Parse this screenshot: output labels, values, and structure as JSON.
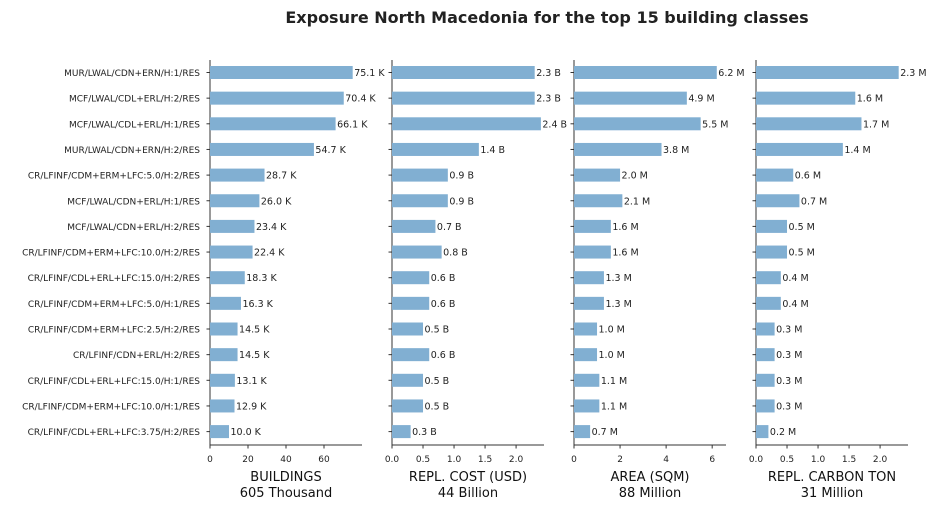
{
  "chart_data": {
    "type": "bar",
    "orientation": "horizontal",
    "title": "Exposure North Macedonia for the top 15 building classes",
    "categories": [
      "MUR/LWAL/CDN+ERN/H:1/RES",
      "MCF/LWAL/CDL+ERL/H:2/RES",
      "MCF/LWAL/CDL+ERL/H:1/RES",
      "MUR/LWAL/CDN+ERN/H:2/RES",
      "CR/LFINF/CDM+ERM+LFC:5.0/H:2/RES",
      "MCF/LWAL/CDN+ERL/H:1/RES",
      "MCF/LWAL/CDN+ERL/H:2/RES",
      "CR/LFINF/CDM+ERM+LFC:10.0/H:2/RES",
      "CR/LFINF/CDL+ERL+LFC:15.0/H:2/RES",
      "CR/LFINF/CDM+ERM+LFC:5.0/H:1/RES",
      "CR/LFINF/CDM+ERM+LFC:2.5/H:2/RES",
      "CR/LFINF/CDN+ERL/H:2/RES",
      "CR/LFINF/CDL+ERL+LFC:15.0/H:1/RES",
      "CR/LFINF/CDM+ERM+LFC:10.0/H:1/RES",
      "CR/LFINF/CDL+ERL+LFC:3.75/H:2/RES"
    ],
    "panels": [
      {
        "name": "BUILDINGS",
        "total": "605 Thousand",
        "xlim": [
          0,
          80
        ],
        "ticks": [
          0,
          20,
          40,
          60
        ],
        "tick_labels": [
          "0",
          "20",
          "40",
          "60"
        ],
        "values": [
          75.1,
          70.4,
          66.1,
          54.7,
          28.7,
          26.0,
          23.4,
          22.4,
          18.3,
          16.3,
          14.5,
          14.5,
          13.1,
          12.9,
          10.0
        ],
        "value_labels": [
          "75.1 K",
          "70.4 K",
          "66.1 K",
          "54.7 K",
          "28.7 K",
          "26.0 K",
          "23.4 K",
          "22.4 K",
          "18.3 K",
          "16.3 K",
          "14.5 K",
          "14.5 K",
          "13.1 K",
          "12.9 K",
          "10.0 K"
        ]
      },
      {
        "name": "REPL. COST (USD)",
        "total": "44 Billion",
        "xlim": [
          0,
          2.45
        ],
        "ticks": [
          0,
          0.5,
          1.0,
          1.5,
          2.0
        ],
        "tick_labels": [
          "0.0",
          "0.5",
          "1.0",
          "1.5",
          "2.0"
        ],
        "values": [
          2.3,
          2.3,
          2.4,
          1.4,
          0.9,
          0.9,
          0.7,
          0.8,
          0.6,
          0.6,
          0.5,
          0.6,
          0.5,
          0.5,
          0.3
        ],
        "value_labels": [
          "2.3 B",
          "2.3 B",
          "2.4 B",
          "1.4 B",
          "0.9 B",
          "0.9 B",
          "0.7 B",
          "0.8 B",
          "0.6 B",
          "0.6 B",
          "0.5 B",
          "0.6 B",
          "0.5 B",
          "0.5 B",
          "0.3 B"
        ]
      },
      {
        "name": "AREA (SQM)",
        "total": "88 Million",
        "xlim": [
          0,
          6.6
        ],
        "ticks": [
          0,
          2,
          4,
          6
        ],
        "tick_labels": [
          "0",
          "2",
          "4",
          "6"
        ],
        "values": [
          6.2,
          4.9,
          5.5,
          3.8,
          2.0,
          2.1,
          1.6,
          1.6,
          1.3,
          1.3,
          1.0,
          1.0,
          1.1,
          1.1,
          0.7
        ],
        "value_labels": [
          "6.2 M",
          "4.9 M",
          "5.5 M",
          "3.8 M",
          "2.0 M",
          "2.1 M",
          "1.6 M",
          "1.6 M",
          "1.3 M",
          "1.3 M",
          "1.0 M",
          "1.0 M",
          "1.1 M",
          "1.1 M",
          "0.7 M"
        ]
      },
      {
        "name": "REPL. CARBON TON",
        "total": "31 Million",
        "xlim": [
          0,
          2.45
        ],
        "ticks": [
          0,
          0.5,
          1.0,
          1.5,
          2.0
        ],
        "tick_labels": [
          "0.0",
          "0.5",
          "1.0",
          "1.5",
          "2.0"
        ],
        "values": [
          2.3,
          1.6,
          1.7,
          1.4,
          0.6,
          0.7,
          0.5,
          0.5,
          0.4,
          0.4,
          0.3,
          0.3,
          0.3,
          0.3,
          0.2
        ],
        "value_labels": [
          "2.3 M",
          "1.6 M",
          "1.7 M",
          "1.4 M",
          "0.6 M",
          "0.7 M",
          "0.5 M",
          "0.5 M",
          "0.4 M",
          "0.4 M",
          "0.3 M",
          "0.3 M",
          "0.3 M",
          "0.3 M",
          "0.2 M"
        ]
      }
    ],
    "bar_color": "#81afd2",
    "grid": false,
    "legend": "none"
  }
}
